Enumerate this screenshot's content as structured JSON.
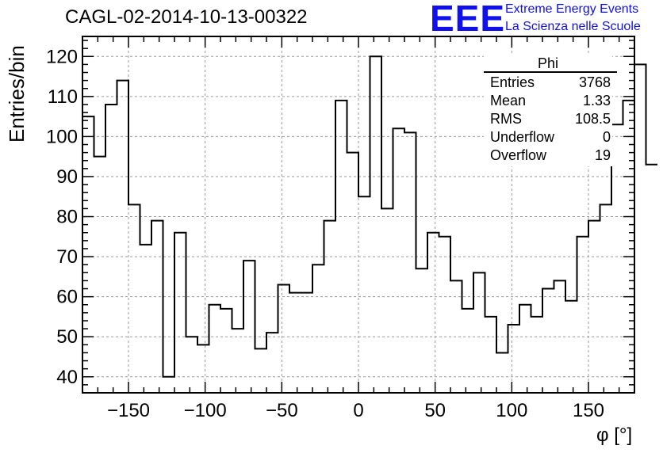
{
  "header": {
    "title": "CAGL-02-2014-10-13-00322",
    "logo_text": "EEE",
    "logo_line1": "Extreme Energy Events",
    "logo_line2": "La Scienza nelle Scuole"
  },
  "stats": {
    "title": "Phi",
    "rows": [
      {
        "label": "Entries",
        "value": "3768"
      },
      {
        "label": "Mean",
        "value": "1.33"
      },
      {
        "label": "RMS",
        "value": "108.5"
      },
      {
        "label": "Underflow",
        "value": "0"
      },
      {
        "label": "Overflow",
        "value": "19"
      }
    ]
  },
  "chart_data": {
    "type": "bar",
    "style": "step-histogram",
    "title": "CAGL-02-2014-10-13-00322",
    "xlabel": "φ [°]",
    "ylabel": "Entries/bin",
    "xlim": [
      -180,
      180
    ],
    "ylim": [
      36,
      125
    ],
    "grid": true,
    "bin_width": 7.5,
    "x_ticks": [
      -150,
      -100,
      -50,
      0,
      50,
      100,
      150
    ],
    "x_tick_labels": [
      "−150",
      "−100",
      "−50",
      "0",
      "50",
      "100",
      "150"
    ],
    "y_ticks": [
      40,
      50,
      60,
      70,
      80,
      90,
      100,
      110,
      120
    ],
    "y_tick_labels": [
      "40",
      "50",
      "60",
      "70",
      "80",
      "90",
      "100",
      "110",
      "120"
    ],
    "bin_edges_start": -180,
    "values": [
      105,
      95,
      108,
      114,
      83,
      73,
      79,
      40,
      76,
      50,
      48,
      58,
      57,
      52,
      69,
      47,
      51,
      63,
      61,
      61,
      68,
      79,
      109,
      96,
      85,
      120,
      82,
      102,
      101,
      67,
      76,
      75,
      64,
      57,
      66,
      55,
      46,
      53,
      58,
      55,
      62,
      64,
      59,
      75,
      79,
      83,
      103,
      109,
      118,
      93
    ]
  },
  "colors": {
    "histogram_line": "#000000",
    "grid": "#9a9a9a",
    "logo": "#1010ee"
  }
}
